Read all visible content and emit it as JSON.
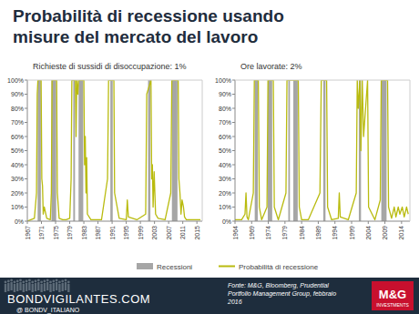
{
  "title": "Probabilità di recessione usando misure del mercato del lavoro",
  "footer": {
    "site": "BONDVIGILANTES.COM",
    "handle": "@ BONDV_ITALIANO",
    "source": [
      "Fonte: M&G, Bloomberg, Prudential",
      "Portfolio Management Group, febbraio",
      "2016"
    ],
    "logo": "M&G",
    "logo_sub": "INVESTMENTS"
  },
  "chart_data": [
    {
      "type": "line",
      "subtitle": "Richieste di sussidi di disoccupazione: 1%",
      "grid": false,
      "legend": "bottom",
      "xlim": [
        1967,
        2016.5
      ],
      "xticks": [
        1967,
        1971,
        1975,
        1979,
        1983,
        1987,
        1991,
        1995,
        1999,
        2003,
        2007,
        2011,
        2015
      ],
      "ylim": [
        0,
        100
      ],
      "yticks": [
        {
          "value": 0,
          "label": "0%"
        },
        {
          "value": 10,
          "label": "10%"
        },
        {
          "value": 20,
          "label": "20%"
        },
        {
          "value": 30,
          "label": "30%"
        },
        {
          "value": 40,
          "label": "40%"
        },
        {
          "value": 50,
          "label": "50%"
        },
        {
          "value": 60,
          "label": "60%"
        },
        {
          "value": 70,
          "label": "70%"
        },
        {
          "value": 80,
          "label": "80%"
        },
        {
          "value": 90,
          "label": "90%"
        },
        {
          "value": 100,
          "label": "100%"
        }
      ],
      "series": [
        {
          "name": "Recessioni",
          "type": "area",
          "color": "#a6a6a6",
          "x": [
            1969.92,
            1969.92,
            1970.83,
            1970.83,
            1973.83,
            1973.83,
            1975.17,
            1975.17,
            1980,
            1980,
            1980.5,
            1980.5,
            1981.5,
            1981.5,
            1982.83,
            1982.83,
            1990.5,
            1990.5,
            1991.17,
            1991.17,
            2001.17,
            2001.17,
            2001.83,
            2001.83,
            2007.92,
            2007.92,
            2009.5,
            2009.5
          ],
          "values": [
            0,
            100,
            100,
            0,
            0,
            100,
            100,
            0,
            0,
            100,
            100,
            0,
            0,
            100,
            100,
            0,
            0,
            100,
            100,
            0,
            0,
            100,
            100,
            0,
            0,
            100,
            100,
            0
          ]
        },
        {
          "name": "Probabilità di recessione",
          "type": "line",
          "color": "#b9bb0f",
          "x": [
            1967,
            1968,
            1969,
            1969.6,
            1969.8,
            1970,
            1970.9,
            1971.1,
            1971.3,
            1971.5,
            1971.8,
            1972.5,
            1973.5,
            1973.8,
            1974,
            1975.3,
            1975.5,
            1976,
            1977,
            1978,
            1979,
            1979.4,
            1979.6,
            1980.6,
            1980.8,
            1981,
            1981.3,
            1981.5,
            1983,
            1983.2,
            1983.4,
            1983.6,
            1983.8,
            1984,
            1985,
            1988,
            1989.7,
            1990,
            1991.5,
            1991.7,
            1993,
            1995,
            1995.3,
            1995.6,
            1998,
            2000.5,
            2000.8,
            2002,
            2002.2,
            2002.4,
            2002.6,
            2002.9,
            2003.1,
            2003.3,
            2004,
            2006,
            2007.6,
            2007.9,
            2009.7,
            2009.9,
            2010.2,
            2010.5,
            2010.8,
            2011.2,
            2011.5,
            2012,
            2014,
            2016
          ],
          "values": [
            0,
            1,
            2,
            20,
            90,
            100,
            100,
            30,
            25,
            5,
            10,
            2,
            1,
            20,
            100,
            100,
            20,
            2,
            1,
            1,
            2,
            30,
            100,
            100,
            60,
            100,
            90,
            100,
            100,
            40,
            60,
            20,
            45,
            5,
            1,
            1,
            30,
            100,
            100,
            20,
            2,
            1,
            15,
            3,
            1,
            5,
            90,
            100,
            30,
            40,
            10,
            35,
            20,
            5,
            2,
            1,
            20,
            100,
            100,
            30,
            20,
            5,
            15,
            10,
            3,
            1,
            1,
            1
          ]
        }
      ]
    },
    {
      "type": "line",
      "subtitle": "Ore lavorate: 2%",
      "grid": false,
      "xlim": [
        1964,
        2016.5
      ],
      "xticks": [
        1964,
        1969,
        1974,
        1979,
        1984,
        1989,
        1994,
        1999,
        2004,
        2009,
        2014
      ],
      "ylim": [
        0,
        100
      ],
      "yticks": [
        {
          "value": 0,
          "label": "0%"
        },
        {
          "value": 10,
          "label": "10%"
        },
        {
          "value": 20,
          "label": "20%"
        },
        {
          "value": 30,
          "label": "30%"
        },
        {
          "value": 40,
          "label": "40%"
        },
        {
          "value": 50,
          "label": "50%"
        },
        {
          "value": 60,
          "label": "60%"
        },
        {
          "value": 70,
          "label": "70%"
        },
        {
          "value": 80,
          "label": "80%"
        },
        {
          "value": 90,
          "label": "90%"
        },
        {
          "value": 100,
          "label": "100%"
        }
      ],
      "series": [
        {
          "type": "area",
          "color": "#a6a6a6",
          "x": [
            1969.92,
            1969.92,
            1970.83,
            1970.83,
            1973.83,
            1973.83,
            1975.17,
            1975.17,
            1980,
            1980,
            1980.5,
            1980.5,
            1981.5,
            1981.5,
            1982.83,
            1982.83,
            1990.5,
            1990.5,
            1991.17,
            1991.17,
            2001.17,
            2001.17,
            2001.83,
            2001.83,
            2007.92,
            2007.92,
            2009.5,
            2009.5
          ],
          "values": [
            0,
            100,
            100,
            0,
            0,
            100,
            100,
            0,
            0,
            100,
            100,
            0,
            0,
            100,
            100,
            0,
            0,
            100,
            100,
            0,
            0,
            100,
            100,
            0,
            0,
            100,
            100,
            0
          ]
        },
        {
          "type": "line",
          "color": "#b9bb0f",
          "x": [
            1964,
            1966,
            1967,
            1967.3,
            1967.6,
            1968,
            1969.5,
            1969.8,
            1971,
            1971.3,
            1972,
            1973.6,
            1973.9,
            1975.5,
            1975.8,
            1977,
            1979.3,
            1979.6,
            1983,
            1983.3,
            1984,
            1986,
            1989.5,
            1989.9,
            1991.5,
            1991.8,
            1993,
            1995,
            1995.3,
            1995.6,
            1998,
            2000.4,
            2000.7,
            2001,
            2001.5,
            2001.8,
            2002.2,
            2002.6,
            2003.8,
            2004.1,
            2006,
            2007.6,
            2007.9,
            2009.8,
            2010.1,
            2011,
            2011.8,
            2012.3,
            2013,
            2013.5,
            2014.2,
            2014.8,
            2015.5,
            2016
          ],
          "values": [
            1,
            1,
            5,
            20,
            3,
            1,
            20,
            100,
            100,
            10,
            1,
            10,
            100,
            100,
            10,
            1,
            20,
            100,
            100,
            10,
            1,
            1,
            20,
            100,
            100,
            10,
            1,
            2,
            20,
            3,
            1,
            20,
            100,
            80,
            100,
            50,
            100,
            60,
            100,
            10,
            1,
            15,
            100,
            100,
            10,
            2,
            10,
            3,
            10,
            5,
            10,
            3,
            10,
            5
          ]
        }
      ]
    }
  ]
}
